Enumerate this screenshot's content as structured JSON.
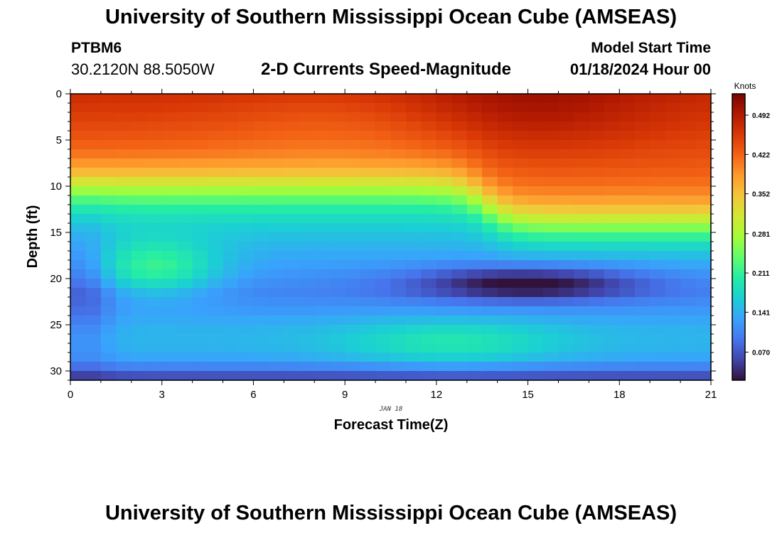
{
  "header": {
    "title": "University of Southern Mississippi Ocean Cube (AMSEAS)",
    "station_id": "PTBM6",
    "station_coords": "30.2120N  88.5050W",
    "plot_title": "2-D Currents Speed-Magnitude",
    "model_start_label": "Model Start Time",
    "model_start_value": "01/18/2024 Hour 00"
  },
  "footer": {
    "title": "University of Southern Mississippi Ocean Cube (AMSEAS)"
  },
  "chart_data": {
    "type": "heatmap",
    "title": "2-D Currents Speed-Magnitude",
    "xlabel": "Forecast Time(Z)",
    "ylabel": "Depth (ft)",
    "date_label": "JAN 18",
    "x_ticks": [
      0,
      3,
      6,
      9,
      12,
      15,
      18,
      21
    ],
    "y_ticks": [
      0,
      5,
      10,
      15,
      20,
      25,
      30
    ],
    "xlim": [
      0,
      21
    ],
    "ylim": [
      0,
      31
    ],
    "y_inverted": true,
    "colorbar": {
      "unit": "Knots",
      "ticks": [
        0.07,
        0.141,
        0.211,
        0.281,
        0.352,
        0.422,
        0.492
      ],
      "tick_labels": [
        "0.070",
        "0.141",
        "0.211",
        "0.281",
        "0.352",
        "0.422",
        "0.492"
      ],
      "range": [
        0.02,
        0.53
      ],
      "colormap": [
        "#30123b",
        "#4145ab",
        "#4675ed",
        "#39a2fc",
        "#1bcfd4",
        "#24eca6",
        "#61fc6c",
        "#a4fc3b",
        "#d1e834",
        "#f3c63a",
        "#fe9b2d",
        "#f36315",
        "#d93806",
        "#b11901",
        "#7a0402"
      ]
    },
    "grid": {
      "x_cells": 42,
      "y_cells": 31
    },
    "field_description": {
      "surface_0ft": 0.47,
      "depth_5ft": 0.43,
      "depth_10ft": 0.27,
      "depth_15ft": 0.16,
      "depth_20ft": 0.11,
      "depth_25ft": 0.13,
      "depth_30ft": 0.08,
      "green_patch": {
        "x": 2.8,
        "depth": 19,
        "value": 0.2
      },
      "low_core": {
        "x": 15,
        "depth": 20.5,
        "value": 0.025
      },
      "mid_depth_high": {
        "x": 12.5,
        "depth": 27,
        "value": 0.18
      },
      "late_surface_layer_depth_ft": 14
    }
  }
}
